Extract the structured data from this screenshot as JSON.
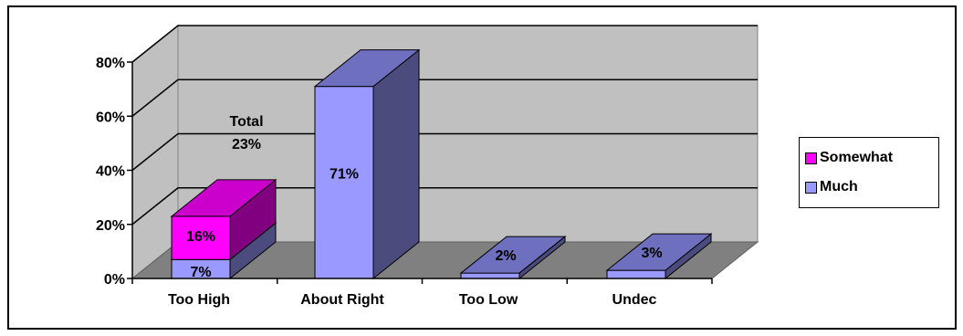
{
  "chart_data": {
    "type": "bar",
    "stacked": true,
    "three_d": true,
    "categories": [
      "Too High",
      "About Right",
      "Too Low",
      "Undec"
    ],
    "series": [
      {
        "name": "Much",
        "values": [
          7,
          71,
          2,
          3
        ],
        "labels": [
          "7%",
          "71%",
          "2%",
          "3%"
        ],
        "color": "#9999ff"
      },
      {
        "name": "Somewhat",
        "values": [
          16,
          0,
          0,
          0
        ],
        "labels": [
          "16%",
          "",
          "",
          ""
        ],
        "color": "#ff00ff"
      }
    ],
    "ylim": [
      0,
      80
    ],
    "yticks": [
      "0%",
      "20%",
      "40%",
      "60%",
      "80%"
    ],
    "annotation": {
      "line1": "Total",
      "line2": "23%"
    },
    "grid": true,
    "legend_position": "right"
  }
}
